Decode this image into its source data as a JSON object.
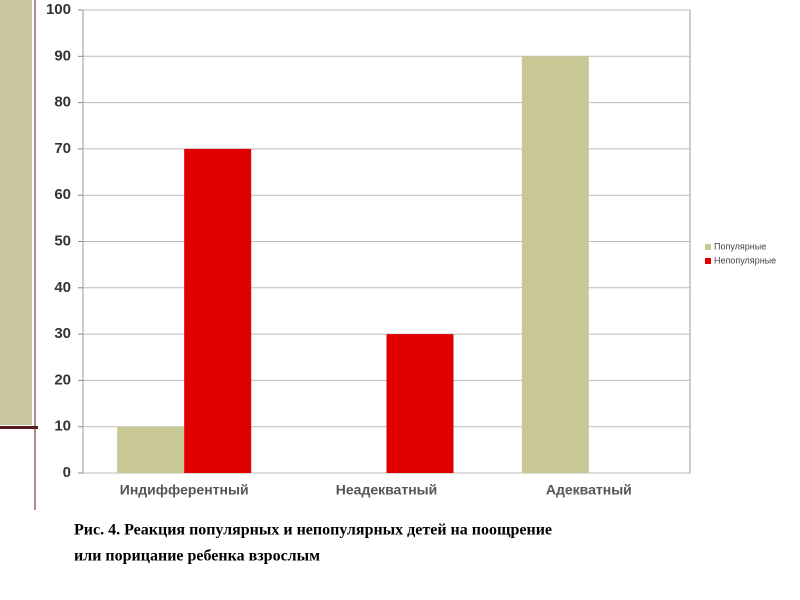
{
  "chart_data": {
    "type": "bar",
    "categories": [
      "Индифферентный",
      "Неадекватный",
      "Адекватный"
    ],
    "series": [
      {
        "name": "Популярные",
        "color": "#c8c894",
        "values": [
          10,
          0,
          90
        ]
      },
      {
        "name": "Непопулярные",
        "color": "#e00000",
        "values": [
          70,
          30,
          0
        ]
      }
    ],
    "ylim": [
      0,
      100
    ],
    "yticks": [
      0,
      10,
      20,
      30,
      40,
      50,
      60,
      70,
      80,
      90,
      100
    ],
    "grid": true,
    "legend": "right"
  },
  "caption": [
    "Рис. 4.  Реакция популярных и непопулярных детей на поощрение",
    "или порицание ребенка взрослым"
  ]
}
